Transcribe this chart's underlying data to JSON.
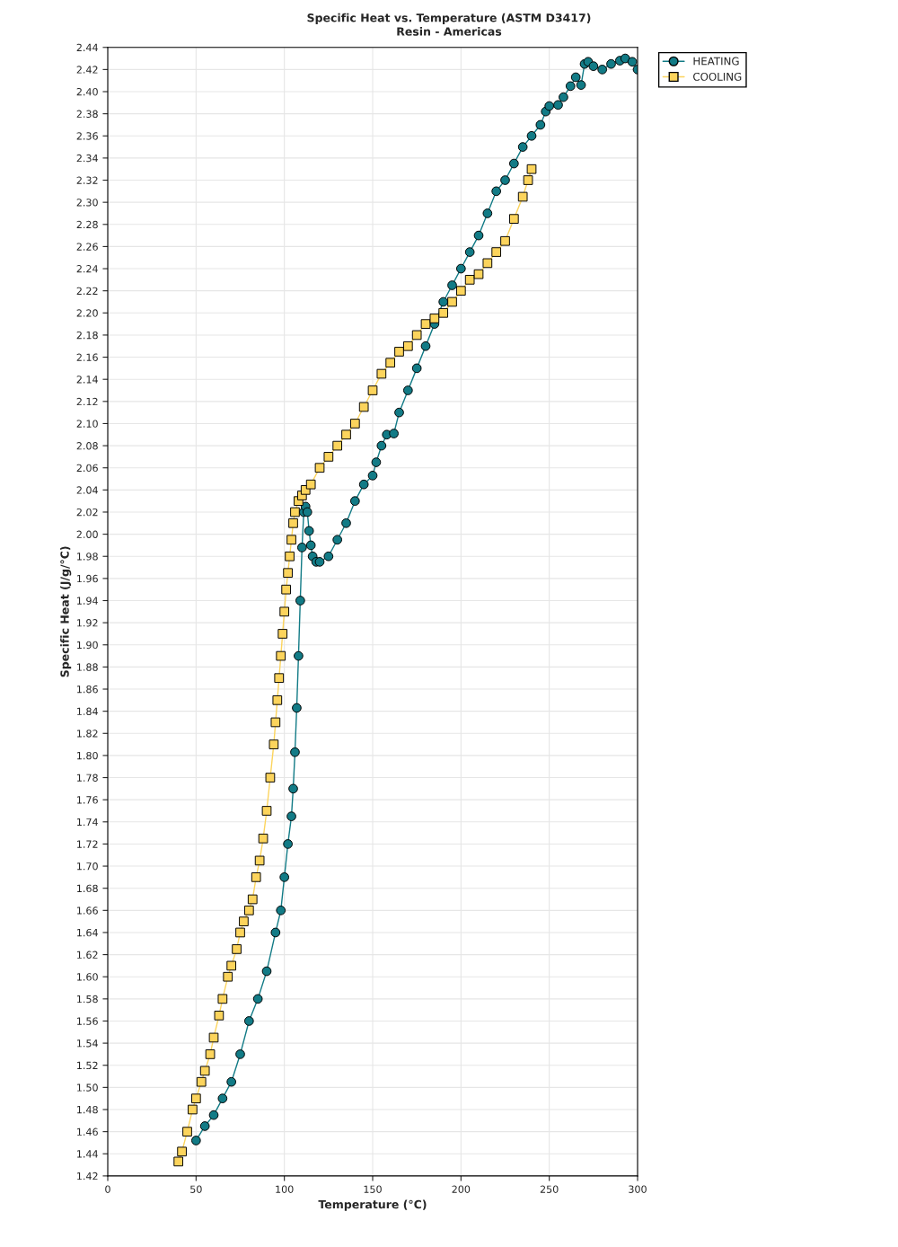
{
  "chart_data": {
    "type": "line",
    "title": "Specific Heat vs. Temperature (ASTM D3417)",
    "subtitle": "Resin - Americas",
    "xlabel": "Temperature (°C)",
    "ylabel": "Specific Heat (J/g/°C)",
    "xlim": [
      0,
      300
    ],
    "xticks": [
      0,
      50,
      100,
      150,
      200,
      250,
      300
    ],
    "ylim": [
      1.42,
      2.44
    ],
    "yticks": [
      {
        "value": 1.42,
        "label": "1.42"
      },
      {
        "value": 1.44,
        "label": "1.44"
      },
      {
        "value": 1.46,
        "label": "1.46"
      },
      {
        "value": 1.48,
        "label": "1.48"
      },
      {
        "value": 1.5,
        "label": "1.50"
      },
      {
        "value": 1.52,
        "label": "1.52"
      },
      {
        "value": 1.54,
        "label": "1.54"
      },
      {
        "value": 1.56,
        "label": "1.56"
      },
      {
        "value": 1.58,
        "label": "1.58"
      },
      {
        "value": 1.6,
        "label": "1.60"
      },
      {
        "value": 1.62,
        "label": "1.62"
      },
      {
        "value": 1.64,
        "label": "1.64"
      },
      {
        "value": 1.66,
        "label": "1.66"
      },
      {
        "value": 1.68,
        "label": "1.68"
      },
      {
        "value": 1.7,
        "label": "1.70"
      },
      {
        "value": 1.72,
        "label": "1.72"
      },
      {
        "value": 1.74,
        "label": "1.74"
      },
      {
        "value": 1.76,
        "label": "1.76"
      },
      {
        "value": 1.78,
        "label": "1.78"
      },
      {
        "value": 1.8,
        "label": "1.80"
      },
      {
        "value": 1.82,
        "label": "1.82"
      },
      {
        "value": 1.84,
        "label": "1.84"
      },
      {
        "value": 1.86,
        "label": "1.86"
      },
      {
        "value": 1.88,
        "label": "1.88"
      },
      {
        "value": 1.9,
        "label": "1.90"
      },
      {
        "value": 1.92,
        "label": "1.92"
      },
      {
        "value": 1.94,
        "label": "1.94"
      },
      {
        "value": 1.96,
        "label": "1.96"
      },
      {
        "value": 1.98,
        "label": "1.98"
      },
      {
        "value": 2.0,
        "label": "2.00"
      },
      {
        "value": 2.02,
        "label": "2.02"
      },
      {
        "value": 2.04,
        "label": "2.04"
      },
      {
        "value": 2.06,
        "label": "2.06"
      },
      {
        "value": 2.08,
        "label": "2.08"
      },
      {
        "value": 2.1,
        "label": "2.10"
      },
      {
        "value": 2.12,
        "label": "2.12"
      },
      {
        "value": 2.14,
        "label": "2.14"
      },
      {
        "value": 2.16,
        "label": "2.16"
      },
      {
        "value": 2.18,
        "label": "2.18"
      },
      {
        "value": 2.2,
        "label": "2.20"
      },
      {
        "value": 2.22,
        "label": "2.22"
      },
      {
        "value": 2.24,
        "label": "2.24"
      },
      {
        "value": 2.26,
        "label": "2.26"
      },
      {
        "value": 2.28,
        "label": "2.28"
      },
      {
        "value": 2.3,
        "label": "2.30"
      },
      {
        "value": 2.32,
        "label": "2.32"
      },
      {
        "value": 2.34,
        "label": "2.34"
      },
      {
        "value": 2.36,
        "label": "2.36"
      },
      {
        "value": 2.38,
        "label": "2.38"
      },
      {
        "value": 2.4,
        "label": "2.40"
      },
      {
        "value": 2.42,
        "label": "2.42"
      },
      {
        "value": 2.44,
        "label": "2.44"
      }
    ],
    "grid": true,
    "legend": "top right",
    "series": [
      {
        "name": "HEATING",
        "color": "#127b86",
        "marker": "circle",
        "x": [
          50,
          55,
          60,
          65,
          70,
          75,
          80,
          85,
          90,
          95,
          98,
          100,
          102,
          104,
          105,
          106,
          107,
          108,
          109,
          110,
          111,
          112,
          113,
          114,
          115,
          116,
          118,
          120,
          125,
          130,
          135,
          140,
          145,
          150,
          152,
          155,
          158,
          162,
          165,
          170,
          175,
          180,
          185,
          190,
          195,
          200,
          205,
          210,
          215,
          220,
          225,
          230,
          235,
          240,
          245,
          248,
          250,
          255,
          258,
          262,
          265,
          268,
          270,
          272,
          275,
          280,
          285,
          290,
          293,
          297,
          300
        ],
        "values": [
          1.452,
          1.465,
          1.475,
          1.49,
          1.505,
          1.53,
          1.56,
          1.58,
          1.605,
          1.64,
          1.66,
          1.69,
          1.72,
          1.745,
          1.77,
          1.803,
          1.843,
          1.89,
          1.94,
          1.988,
          2.02,
          2.025,
          2.02,
          2.003,
          1.99,
          1.98,
          1.975,
          1.975,
          1.98,
          1.995,
          2.01,
          2.03,
          2.045,
          2.053,
          2.065,
          2.08,
          2.09,
          2.091,
          2.11,
          2.13,
          2.15,
          2.17,
          2.19,
          2.21,
          2.225,
          2.24,
          2.255,
          2.27,
          2.29,
          2.31,
          2.32,
          2.335,
          2.35,
          2.36,
          2.37,
          2.382,
          2.387,
          2.388,
          2.395,
          2.405,
          2.413,
          2.406,
          2.425,
          2.427,
          2.423,
          2.42,
          2.425,
          2.428,
          2.43,
          2.427,
          2.42
        ]
      },
      {
        "name": "COOLING",
        "color": "#fcd45c",
        "marker": "square",
        "x": [
          40,
          42,
          45,
          48,
          50,
          53,
          55,
          58,
          60,
          63,
          65,
          68,
          70,
          73,
          75,
          77,
          80,
          82,
          84,
          86,
          88,
          90,
          92,
          94,
          95,
          96,
          97,
          98,
          99,
          100,
          101,
          102,
          103,
          104,
          105,
          106,
          108,
          110,
          112,
          115,
          120,
          125,
          130,
          135,
          140,
          145,
          150,
          155,
          160,
          165,
          170,
          175,
          180,
          185,
          190,
          195,
          200,
          205,
          210,
          215,
          220,
          225,
          230,
          235,
          238,
          240
        ],
        "values": [
          1.433,
          1.442,
          1.46,
          1.48,
          1.49,
          1.505,
          1.515,
          1.53,
          1.545,
          1.565,
          1.58,
          1.6,
          1.61,
          1.625,
          1.64,
          1.65,
          1.66,
          1.67,
          1.69,
          1.705,
          1.725,
          1.75,
          1.78,
          1.81,
          1.83,
          1.85,
          1.87,
          1.89,
          1.91,
          1.93,
          1.95,
          1.965,
          1.98,
          1.995,
          2.01,
          2.02,
          2.03,
          2.035,
          2.04,
          2.045,
          2.06,
          2.07,
          2.08,
          2.09,
          2.1,
          2.115,
          2.13,
          2.145,
          2.155,
          2.165,
          2.17,
          2.18,
          2.19,
          2.195,
          2.2,
          2.21,
          2.22,
          2.23,
          2.235,
          2.245,
          2.255,
          2.265,
          2.285,
          2.305,
          2.32,
          2.33
        ]
      }
    ]
  }
}
